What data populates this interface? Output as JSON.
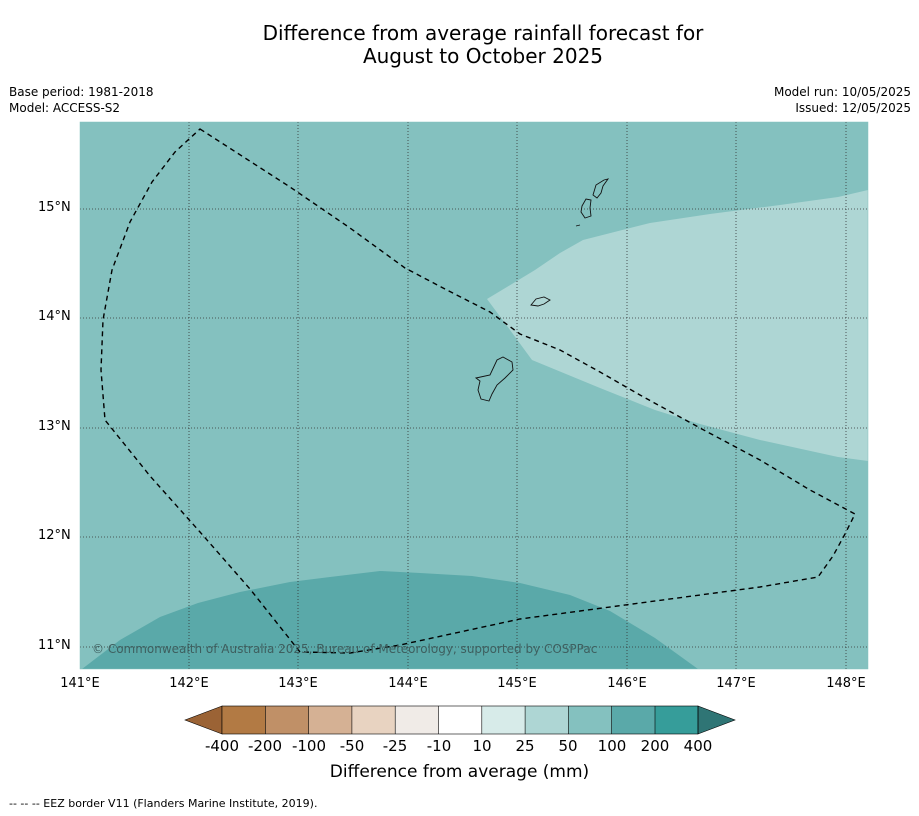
{
  "title": {
    "line1": "Difference from average rainfall forecast for",
    "line2": "August to October 2025"
  },
  "meta": {
    "base_period": "Base period: 1981-2018",
    "model": "Model: ACCESS-S2",
    "model_run": "Model run: 10/05/2025",
    "issued": "Issued: 12/05/2025"
  },
  "map": {
    "lat_labels": [
      "15°N",
      "14°N",
      "13°N",
      "12°N",
      "11°N"
    ],
    "lon_labels": [
      "141°E",
      "142°E",
      "143°E",
      "144°E",
      "145°E",
      "146°E",
      "147°E",
      "148°E"
    ],
    "copyright": "© Commonwealth of Australia 2025, Bureau of Meteorology, supported by COSPPac",
    "colors": {
      "class_50_100": "#84c1bf",
      "class_25_50": "#aed6d4",
      "class_100_200": "#5aa9a9"
    }
  },
  "colorbar": {
    "ticks": [
      "-400",
      "-200",
      "-100",
      "-50",
      "-25",
      "-10",
      "10",
      "25",
      "50",
      "100",
      "200",
      "400"
    ],
    "colors": [
      "#9b6335",
      "#b27a44",
      "#c09067",
      "#d5b194",
      "#e8d3c1",
      "#f0ebe7",
      "#ffffff",
      "#d7ebe9",
      "#aed6d4",
      "#84c1bf",
      "#5aa9a9",
      "#369d9a",
      "#2f7575"
    ],
    "label": "Difference from average (mm)"
  },
  "footnote": "--  --  -- EEZ border V11 (Flanders Marine Institute, 2019)."
}
